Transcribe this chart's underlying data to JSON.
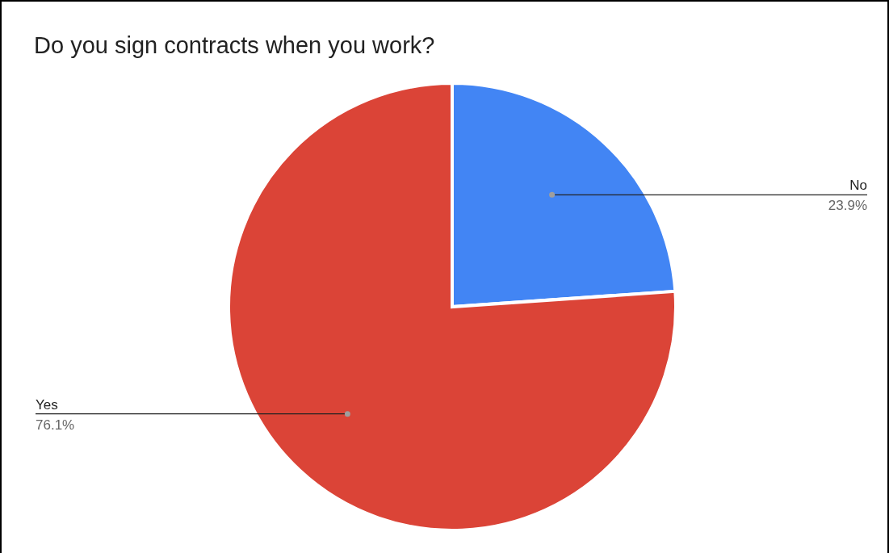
{
  "chart_data": {
    "type": "pie",
    "title": "Do you sign contracts when you work?",
    "categories": [
      "No",
      "Yes"
    ],
    "values": [
      23.9,
      76.1
    ],
    "value_labels": [
      "23.9%",
      "76.1%"
    ],
    "colors": [
      "#4285f4",
      "#db4437"
    ],
    "legend": false
  }
}
